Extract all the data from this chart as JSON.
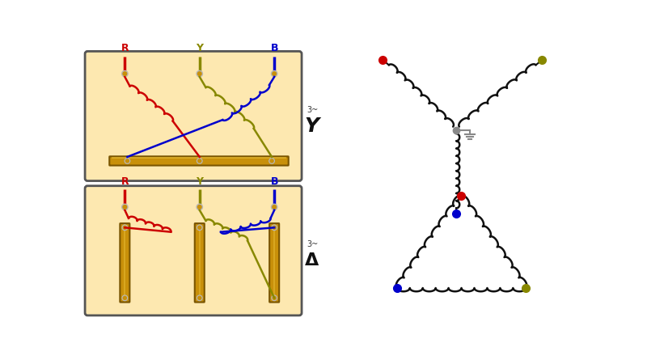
{
  "bg_color": "#ffffff",
  "panel_color": "#fde8b0",
  "panel_edge": "#555555",
  "colors": {
    "R": "#cc0000",
    "Y": "#888800",
    "B": "#0000cc",
    "wire": "#1a1a1a",
    "terminal_silver": "#b8b8b8",
    "terminal_gold": "#c8900a",
    "bus_gold": "#c8900a",
    "bus_edge": "#7a5500",
    "coil_red": "#cc0000",
    "coil_blue": "#0000cc",
    "coil_yellow": "#888800",
    "ground_gray": "#888888",
    "schematic_black": "#111111"
  },
  "labels": {
    "star_label": "Y",
    "delta_label": "Δ",
    "three_phase": "3~"
  },
  "font_sizes": {
    "phase_label": 9,
    "star_label": 18,
    "delta_label": 16,
    "three_phase": 7
  }
}
